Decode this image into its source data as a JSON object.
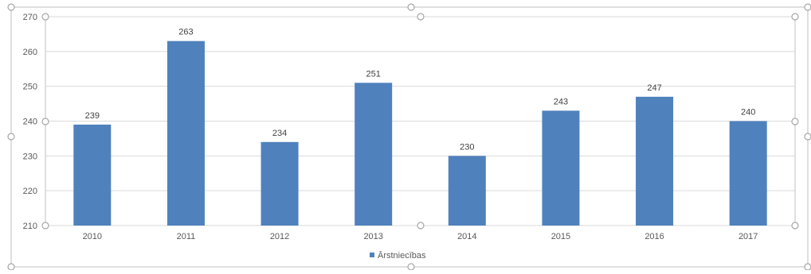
{
  "chart_data": {
    "type": "bar",
    "categories": [
      "2010",
      "2011",
      "2012",
      "2013",
      "2014",
      "2015",
      "2016",
      "2017"
    ],
    "series": [
      {
        "name": "Ārstniecības",
        "values": [
          239,
          263,
          234,
          251,
          230,
          243,
          247,
          240
        ],
        "color": "#4f81bd"
      }
    ],
    "ylim": [
      210,
      270
    ],
    "yticks": [
      "210",
      "220",
      "230",
      "240",
      "250",
      "260",
      "270"
    ],
    "data_labels": [
      "239",
      "263",
      "234",
      "251",
      "230",
      "243",
      "247",
      "240"
    ],
    "grid": true,
    "legend_position": "bottom",
    "gridline_color": "#d9d9d9",
    "selection_handle_color": "#a6a6a6"
  }
}
